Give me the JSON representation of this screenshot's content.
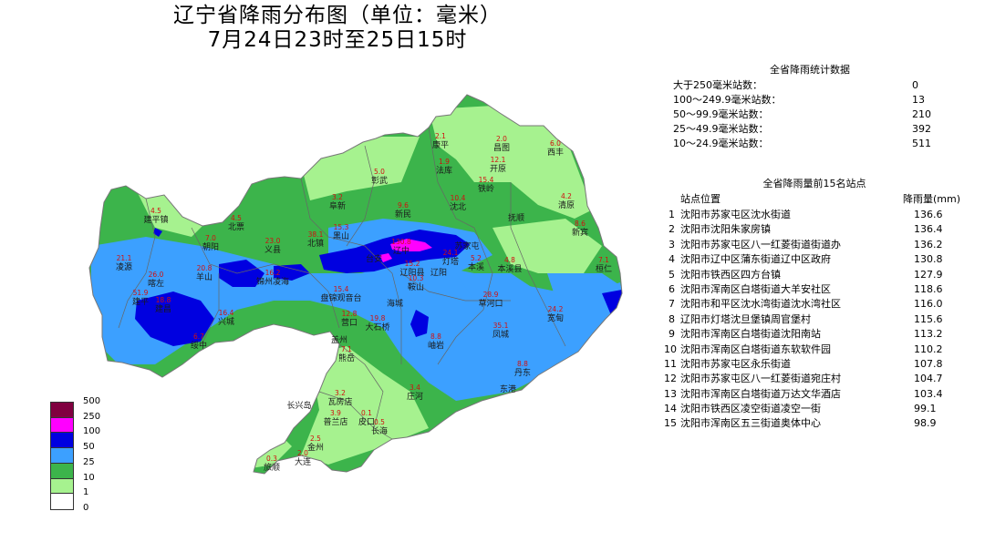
{
  "title": {
    "line1": "辽宁省降雨分布图（单位：毫米）",
    "line2": "7月24日23时至25日15时"
  },
  "stats": {
    "heading": "全省降雨统计数据",
    "rows": [
      {
        "label": "大于250毫米站数：",
        "value": "0"
      },
      {
        "label": "100～249.9毫米站数：",
        "value": "13"
      },
      {
        "label": "50～99.9毫米站数：",
        "value": "210"
      },
      {
        "label": "25～49.9毫米站数：",
        "value": "392"
      },
      {
        "label": "10～24.9毫米站数：",
        "value": "511"
      }
    ]
  },
  "top15": {
    "heading": "全省降雨量前15名站点",
    "col_station": "站点位置",
    "col_rain": "降雨量(mm)",
    "rows": [
      {
        "no": "1",
        "station": "沈阳市苏家屯区沈水街道",
        "value": "136.6"
      },
      {
        "no": "2",
        "station": "沈阳市沈阳朱家房镇",
        "value": "136.4"
      },
      {
        "no": "3",
        "station": "沈阳市苏家屯区八一红菱街道街道办",
        "value": "136.2"
      },
      {
        "no": "4",
        "station": "沈阳市辽中区蒲东街道辽中区政府",
        "value": "130.8"
      },
      {
        "no": "5",
        "station": "沈阳市铁西区四方台镇",
        "value": "127.9"
      },
      {
        "no": "6",
        "station": "沈阳市浑南区白塔街道大羊安社区",
        "value": "118.6"
      },
      {
        "no": "7",
        "station": "沈阳市和平区沈水湾街道沈水湾社区",
        "value": "116.0"
      },
      {
        "no": "8",
        "station": "辽阳市灯塔沈旦堡镇周官堡村",
        "value": "115.6"
      },
      {
        "no": "9",
        "station": "沈阳市浑南区白塔街道沈阳南站",
        "value": "113.2"
      },
      {
        "no": "10",
        "station": "沈阳市浑南区白塔街道东软软件园",
        "value": "110.2"
      },
      {
        "no": "11",
        "station": "沈阳市苏家屯区永乐街道",
        "value": "107.8"
      },
      {
        "no": "12",
        "station": "沈阳市苏家屯区八一红菱街道宛庄村",
        "value": "104.7"
      },
      {
        "no": "13",
        "station": "沈阳市浑南区白塔街道万达文华酒店",
        "value": "103.4"
      },
      {
        "no": "14",
        "station": "沈阳市铁西区凌空街道凌空一街",
        "value": "99.1"
      },
      {
        "no": "15",
        "station": "沈阳市浑南区五三街道奥体中心",
        "value": "98.9"
      }
    ]
  },
  "legend": {
    "classes": [
      {
        "label": "500",
        "color": "#800040"
      },
      {
        "label": "250",
        "color": "#ff00ff"
      },
      {
        "label": "100",
        "color": "#0000e0"
      },
      {
        "label": "50",
        "color": "#3ca0ff"
      },
      {
        "label": "25",
        "color": "#3cb44b"
      },
      {
        "label": "10",
        "color": "#a6f28f"
      },
      {
        "label": "1",
        "color": "#ffffff"
      },
      {
        "label": "0",
        "color": ""
      }
    ]
  },
  "map": {
    "place_names": [
      {
        "name": "康平",
        "value": "2.1"
      },
      {
        "name": "法库",
        "value": "1.9"
      },
      {
        "name": "昌图",
        "value": "2.0"
      },
      {
        "name": "开原",
        "value": "12.1"
      },
      {
        "name": "西丰",
        "value": "6.0"
      },
      {
        "name": "铁岭",
        "value": "15.4"
      },
      {
        "name": "彰武",
        "value": "5.0"
      },
      {
        "name": "阜新",
        "value": "3.2"
      },
      {
        "name": "新民",
        "value": "9.6"
      },
      {
        "name": "沈北",
        "value": "10.4"
      },
      {
        "name": "抚顺",
        "value": ""
      },
      {
        "name": "清原",
        "value": "4.2"
      },
      {
        "name": "新宾",
        "value": "8.6"
      },
      {
        "name": "建平镇",
        "value": "4.5"
      },
      {
        "name": "北票",
        "value": "4.5"
      },
      {
        "name": "朝阳",
        "value": "7.0"
      },
      {
        "name": "黑山",
        "value": "15.3"
      },
      {
        "name": "北镇",
        "value": "38.1"
      },
      {
        "name": "义县",
        "value": "23.0"
      },
      {
        "name": "台安",
        "value": ""
      },
      {
        "name": "辽中",
        "value": "130.8"
      },
      {
        "name": "灯塔",
        "value": "24.1"
      },
      {
        "name": "苏家屯",
        "value": ""
      },
      {
        "name": "本溪",
        "value": "5.2"
      },
      {
        "name": "本溪县",
        "value": "4.8"
      },
      {
        "name": "桓仁",
        "value": "7.1"
      },
      {
        "name": "凌源",
        "value": "21.1"
      },
      {
        "name": "建平",
        "value": "51.9"
      },
      {
        "name": "喀左",
        "value": "26.0"
      },
      {
        "name": "羊山",
        "value": "20.8"
      },
      {
        "name": "锦州凌海",
        "value": "16.2"
      },
      {
        "name": "辽阳县",
        "value": "15.2"
      },
      {
        "name": "鞍山",
        "value": "10.3"
      },
      {
        "name": "辽阳",
        "value": ""
      },
      {
        "name": "海城",
        "value": ""
      },
      {
        "name": "盘锦观音台",
        "value": "15.4"
      },
      {
        "name": "营口",
        "value": "12.8"
      },
      {
        "name": "大石桥",
        "value": "19.8"
      },
      {
        "name": "凤城",
        "value": "35.1"
      },
      {
        "name": "宽甸",
        "value": "24.2"
      },
      {
        "name": "草河口",
        "value": "28.9"
      },
      {
        "name": "建昌",
        "value": "18.8"
      },
      {
        "name": "兴城",
        "value": "16.4"
      },
      {
        "name": "绥中",
        "value": "6.7"
      },
      {
        "name": "盖州",
        "value": ""
      },
      {
        "name": "岫岩",
        "value": "8.8"
      },
      {
        "name": "熊岳",
        "value": "7.1"
      },
      {
        "name": "丹东",
        "value": "8.8"
      },
      {
        "name": "东港",
        "value": ""
      },
      {
        "name": "庄河",
        "value": "3.4"
      },
      {
        "name": "瓦房店",
        "value": "3.2"
      },
      {
        "name": "长兴岛",
        "value": ""
      },
      {
        "name": "普兰店",
        "value": "3.9"
      },
      {
        "name": "皮口",
        "value": "0.1"
      },
      {
        "name": "长海",
        "value": "0.5"
      },
      {
        "name": "金州",
        "value": "2.5"
      },
      {
        "name": "大连",
        "value": "2.0"
      },
      {
        "name": "旅顺",
        "value": "0.3"
      }
    ]
  }
}
